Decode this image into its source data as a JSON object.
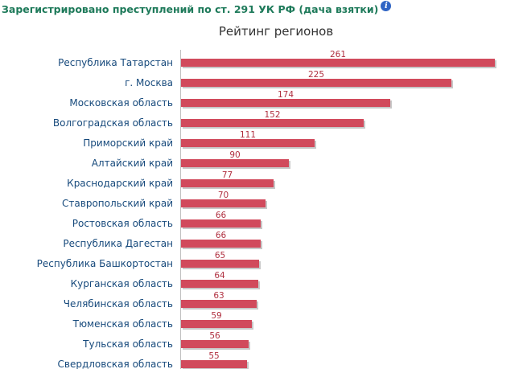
{
  "header": {
    "title": "Зарегистрировано преступлений по ст. 291 УК РФ (дача взятки)",
    "info_icon": "info-icon"
  },
  "colors": {
    "header_text": "#1e7a5a",
    "bar_fill": "#d14a5c",
    "bar_shadow": "#c8c8c8",
    "category_text": "#174a7c",
    "value_text": "#b03040",
    "info_icon": "#2f64c4"
  },
  "chart_data": {
    "type": "bar",
    "orientation": "horizontal",
    "title": "Рейтинг регионов",
    "xlabel": "",
    "ylabel": "",
    "xlim": [
      0,
      261
    ],
    "grid": false,
    "legend": "none",
    "categories": [
      "Республика Татарстан",
      "г. Москва",
      "Московская область",
      "Волгоградская область",
      "Приморский край",
      "Алтайский край",
      "Краснодарский край",
      "Ставропольский край",
      "Ростовская область",
      "Республика Дагестан",
      "Республика Башкортостан",
      "Курганская область",
      "Челябинская область",
      "Тюменская область",
      "Тульская область",
      "Свердловская область"
    ],
    "values": [
      261,
      225,
      174,
      152,
      111,
      90,
      77,
      70,
      66,
      66,
      65,
      64,
      63,
      59,
      56,
      55
    ]
  }
}
